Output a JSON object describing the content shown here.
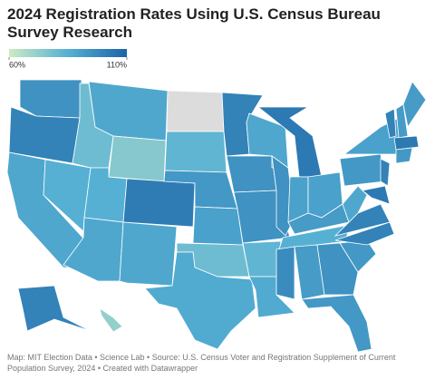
{
  "chart_data": {
    "type": "choropleth",
    "title": "2024 Registration Rates Using U.S. Census Bureau Survey Research",
    "source": "Map: MIT Election Data • Science Lab • Source: U.S. Census Voter and Registration Supplement of Current Population Survey, 2024 • Created with Datawrapper",
    "legend_ticks": [
      {
        "value": 60,
        "label": "60%"
      },
      {
        "value": 110,
        "label": "110%"
      }
    ],
    "colors": [
      "#cdebc3",
      "#56b0d4",
      "#1c64a6"
    ],
    "missing_color": "#dcdcdc",
    "values": [
      95,
      100,
      88,
      85,
      80,
      88,
      75,
      85,
      88,
      102,
      88,
      null,
      83,
      93,
      90,
      80,
      87,
      100,
      95,
      95,
      83,
      87,
      88,
      95,
      103,
      90,
      90,
      92,
      85,
      97,
      92,
      95,
      93,
      93,
      100,
      100,
      88,
      93,
      90,
      100,
      103,
      100,
      92,
      92,
      103,
      93,
      100,
      72
    ]
  }
}
